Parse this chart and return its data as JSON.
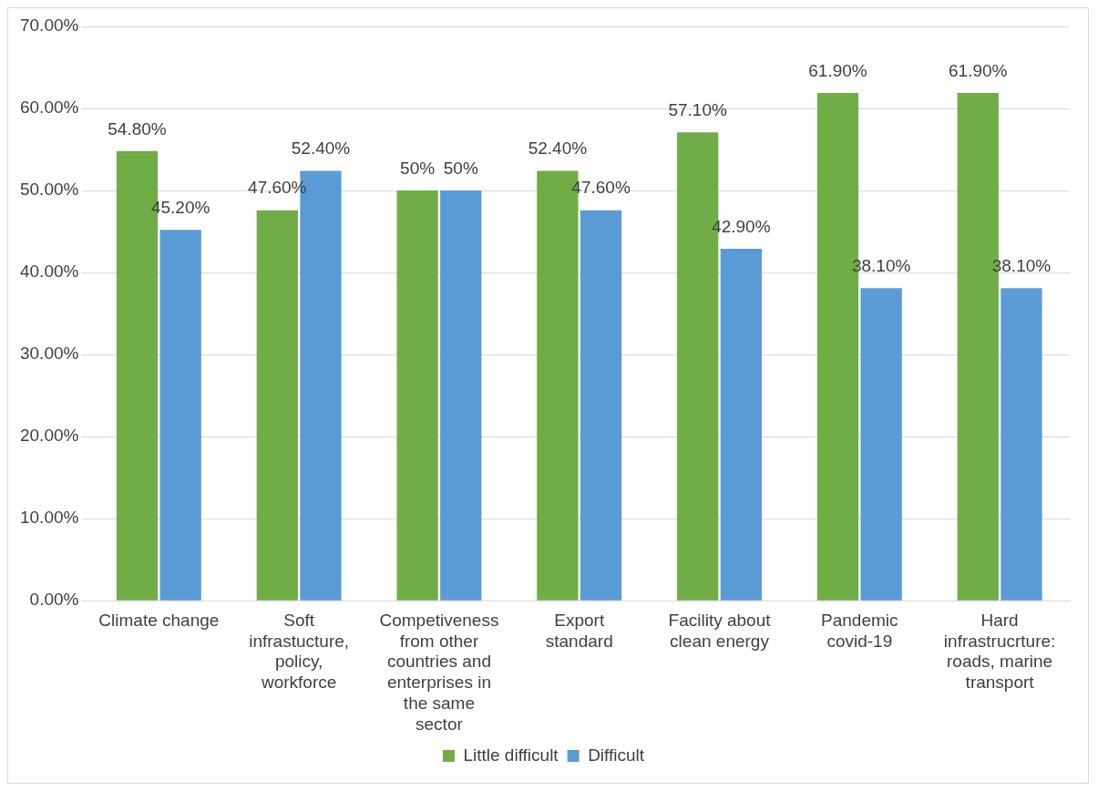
{
  "chart_data": {
    "type": "bar",
    "categories": [
      "Climate change",
      "Soft infrastucture, policy, workforce",
      "Competiveness from other countries and enterprises in the same sector",
      "Export standard",
      "Facility about clean energy",
      "Pandemic covid-19",
      "Hard infrastrucrture: roads, marine transport"
    ],
    "series": [
      {
        "name": "Little difficult",
        "color": "#70ad47",
        "values": [
          54.8,
          47.6,
          50,
          52.4,
          57.1,
          61.9,
          61.9
        ],
        "value_labels": [
          "54.80%",
          "47.60%",
          "50%",
          "52.40%",
          "57.10%",
          "61.90%",
          "61.90%"
        ]
      },
      {
        "name": "Difficult",
        "color": "#5b9bd5",
        "values": [
          45.2,
          52.4,
          50,
          47.6,
          42.9,
          38.1,
          38.1
        ],
        "value_labels": [
          "45.20%",
          "52.40%",
          "50%",
          "47.60%",
          "42.90%",
          "38.10%",
          "38.10%"
        ]
      }
    ],
    "ylim": [
      0,
      70
    ],
    "yticks": [
      {
        "value": 0,
        "label": "0.00%"
      },
      {
        "value": 10,
        "label": "10.00%"
      },
      {
        "value": 20,
        "label": "20.00%"
      },
      {
        "value": 30,
        "label": "30.00%"
      },
      {
        "value": 40,
        "label": "40.00%"
      },
      {
        "value": 50,
        "label": "50.00%"
      },
      {
        "value": 60,
        "label": "60.00%"
      },
      {
        "value": 70,
        "label": "70.00%"
      }
    ],
    "grid": "y",
    "legend": "bottom"
  }
}
